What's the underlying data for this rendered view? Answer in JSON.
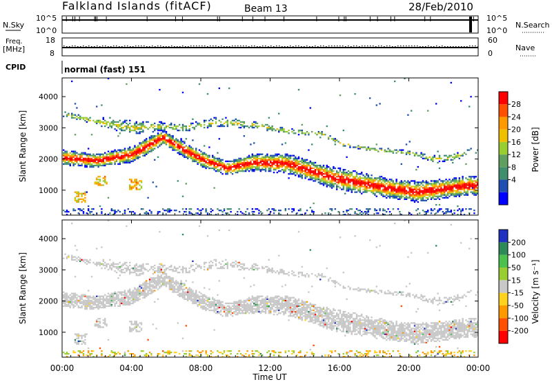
{
  "header": {
    "station": "Falkland Islands (fitACF)",
    "beam": "Beam 13",
    "date": "28/Feb/2010"
  },
  "strips": {
    "nsky_label": "N.Sky",
    "nsky_ticks": [
      "10^5",
      "10^0"
    ],
    "nsearch_label": "N.Search",
    "nsearch_ticks": [
      "10^5",
      "10^0"
    ],
    "freq_label": "Freq.",
    "freq_unit": "[MHz]",
    "freq_ticks": [
      "18",
      "8"
    ],
    "nave_label": "Nave",
    "nave_ticks": [
      "60",
      "0"
    ],
    "cpid_label": "CPID",
    "cpid_value": "normal (fast) 151"
  },
  "colors": {
    "power": [
      "#0000ff",
      "#1f4fb0",
      "#3f8f6f",
      "#5fa060",
      "#9acd32",
      "#f0c000",
      "#ff9900",
      "#ff5000",
      "#ff0000"
    ],
    "velocity": [
      "#2030c0",
      "#2e8b57",
      "#4cc24c",
      "#9acd32",
      "#c8c8c8",
      "#ffd21e",
      "#ff9900",
      "#ff5000",
      "#ff0000"
    ],
    "gray": "#c8c8c8"
  },
  "chart_data": [
    {
      "type": "heatmap",
      "panel": "power",
      "ylabel": "Slant Range [km]",
      "yticks": [
        "1000",
        "2000",
        "3000",
        "4000"
      ],
      "ylim": [
        200,
        4600
      ],
      "xlim": [
        0,
        24
      ],
      "xticks": [
        "00:00",
        "04:00",
        "08:00",
        "12:00",
        "16:00",
        "20:00",
        "00:00"
      ],
      "colorbar_label": "Power [dB]",
      "colorbar_ticks": [
        "28",
        "24",
        "20",
        "16",
        "12",
        "8",
        "4"
      ],
      "main_band": {
        "time_h": [
          0,
          2,
          4,
          5,
          5.8,
          7,
          8,
          9.5,
          11,
          13,
          15,
          16,
          17.5,
          19,
          20.5,
          22,
          23.5
        ],
        "range_km": [
          2050,
          1950,
          2150,
          2450,
          2700,
          2300,
          2000,
          1700,
          1900,
          1850,
          1500,
          1350,
          1200,
          1050,
          950,
          1050,
          1150
        ],
        "half_width_km": [
          220,
          200,
          220,
          250,
          200,
          220,
          220,
          200,
          250,
          280,
          300,
          320,
          300,
          280,
          300,
          280,
          280
        ]
      },
      "upper_band": {
        "time_h": [
          0,
          2,
          4,
          5.8,
          7,
          9,
          11,
          13,
          15,
          16,
          18,
          20,
          21.5,
          22.5,
          23.5
        ],
        "range_km": [
          3450,
          3200,
          3000,
          3050,
          3000,
          3200,
          3100,
          2900,
          2800,
          2500,
          2300,
          2200,
          2000,
          2050,
          2250
        ],
        "half_width_km": [
          80,
          100,
          200,
          120,
          100,
          150,
          100,
          80,
          70,
          60,
          60,
          70,
          100,
          100,
          80
        ]
      },
      "near_range_echoes": [
        {
          "time_h": 1.0,
          "range_km": 800
        },
        {
          "time_h": 2.2,
          "range_km": 1300
        },
        {
          "time_h": 4.2,
          "range_km": 1200
        }
      ]
    },
    {
      "type": "heatmap",
      "panel": "velocity",
      "ylabel": "Slant Range [km]",
      "yticks": [
        "1000",
        "2000",
        "3000",
        "4000"
      ],
      "ylim": [
        200,
        4600
      ],
      "xlim": [
        0,
        24
      ],
      "xticks": [
        "00:00",
        "04:00",
        "08:00",
        "12:00",
        "16:00",
        "20:00",
        "00:00"
      ],
      "xlabel": "Time UT",
      "colorbar_label": "Velocity [m s⁻¹]",
      "colorbar_ticks": [
        "200",
        "100",
        "50",
        "15",
        "-15",
        "-50",
        "-100",
        "-200"
      ]
    }
  ]
}
